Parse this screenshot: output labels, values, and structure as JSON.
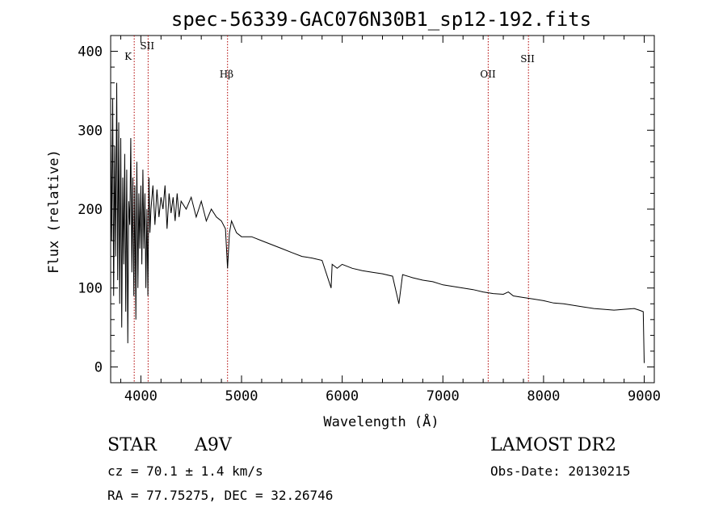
{
  "chart_data": {
    "type": "line",
    "title": "spec-56339-GAC076N30B1_sp12-192.fits",
    "xlabel": "Wavelength (Å)",
    "ylabel": "Flux (relative)",
    "xlim": [
      3700,
      9100
    ],
    "ylim": [
      -20,
      420
    ],
    "x_ticks": [
      4000,
      5000,
      6000,
      7000,
      8000,
      9000
    ],
    "y_ticks": [
      0,
      100,
      200,
      300,
      400
    ],
    "grid": false,
    "legend": "none",
    "series": [
      {
        "line_color": "#000000",
        "x": [
          3700,
          3710,
          3720,
          3730,
          3740,
          3750,
          3760,
          3770,
          3780,
          3790,
          3800,
          3810,
          3820,
          3830,
          3840,
          3850,
          3860,
          3870,
          3880,
          3890,
          3900,
          3910,
          3920,
          3930,
          3940,
          3950,
          3960,
          3970,
          3980,
          3990,
          4000,
          4010,
          4020,
          4030,
          4040,
          4050,
          4060,
          4070,
          4080,
          4090,
          4100,
          4120,
          4140,
          4160,
          4180,
          4200,
          4220,
          4240,
          4260,
          4280,
          4300,
          4320,
          4340,
          4360,
          4380,
          4400,
          4450,
          4500,
          4550,
          4600,
          4650,
          4700,
          4750,
          4800,
          4840,
          4861,
          4880,
          4900,
          4950,
          5000,
          5100,
          5200,
          5300,
          5400,
          5500,
          5600,
          5700,
          5800,
          5890,
          5900,
          5950,
          6000,
          6100,
          6200,
          6300,
          6400,
          6500,
          6563,
          6600,
          6700,
          6800,
          6900,
          7000,
          7100,
          7200,
          7300,
          7400,
          7500,
          7600,
          7650,
          7700,
          7800,
          7900,
          8000,
          8100,
          8200,
          8300,
          8400,
          8500,
          8600,
          8700,
          8800,
          8900,
          8950,
          8990,
          9000
        ],
        "y": [
          300,
          160,
          340,
          90,
          280,
          140,
          360,
          110,
          310,
          80,
          290,
          50,
          240,
          130,
          270,
          70,
          250,
          30,
          210,
          180,
          290,
          120,
          240,
          90,
          230,
          60,
          260,
          100,
          220,
          150,
          230,
          130,
          250,
          150,
          220,
          100,
          200,
          90,
          240,
          170,
          200,
          230,
          180,
          225,
          190,
          215,
          200,
          230,
          175,
          220,
          195,
          215,
          185,
          220,
          190,
          210,
          200,
          215,
          190,
          210,
          185,
          200,
          190,
          185,
          175,
          125,
          170,
          185,
          170,
          165,
          165,
          160,
          155,
          150,
          145,
          140,
          138,
          135,
          100,
          130,
          125,
          130,
          125,
          122,
          120,
          118,
          115,
          80,
          117,
          113,
          110,
          108,
          104,
          102,
          100,
          98,
          95,
          93,
          92,
          95,
          90,
          88,
          86,
          84,
          81,
          80,
          78,
          76,
          74,
          73,
          72,
          73,
          74,
          72,
          70,
          5
        ]
      }
    ],
    "lines": [
      {
        "label": "K",
        "x": 3934
      },
      {
        "label": "SII",
        "x": 4072
      },
      {
        "label": "Hβ",
        "x": 4861
      },
      {
        "label": "OII",
        "x": 7450
      },
      {
        "label": "SII",
        "x": 7850
      }
    ]
  },
  "footer": {
    "class": "STAR",
    "subclass": "A9V",
    "survey": "LAMOST DR2",
    "cz": "cz = 70.1 ± 1.4 km/s",
    "obs_date": "Obs-Date: 20130215",
    "coords": "RA =  77.75275, DEC =  32.26746"
  }
}
